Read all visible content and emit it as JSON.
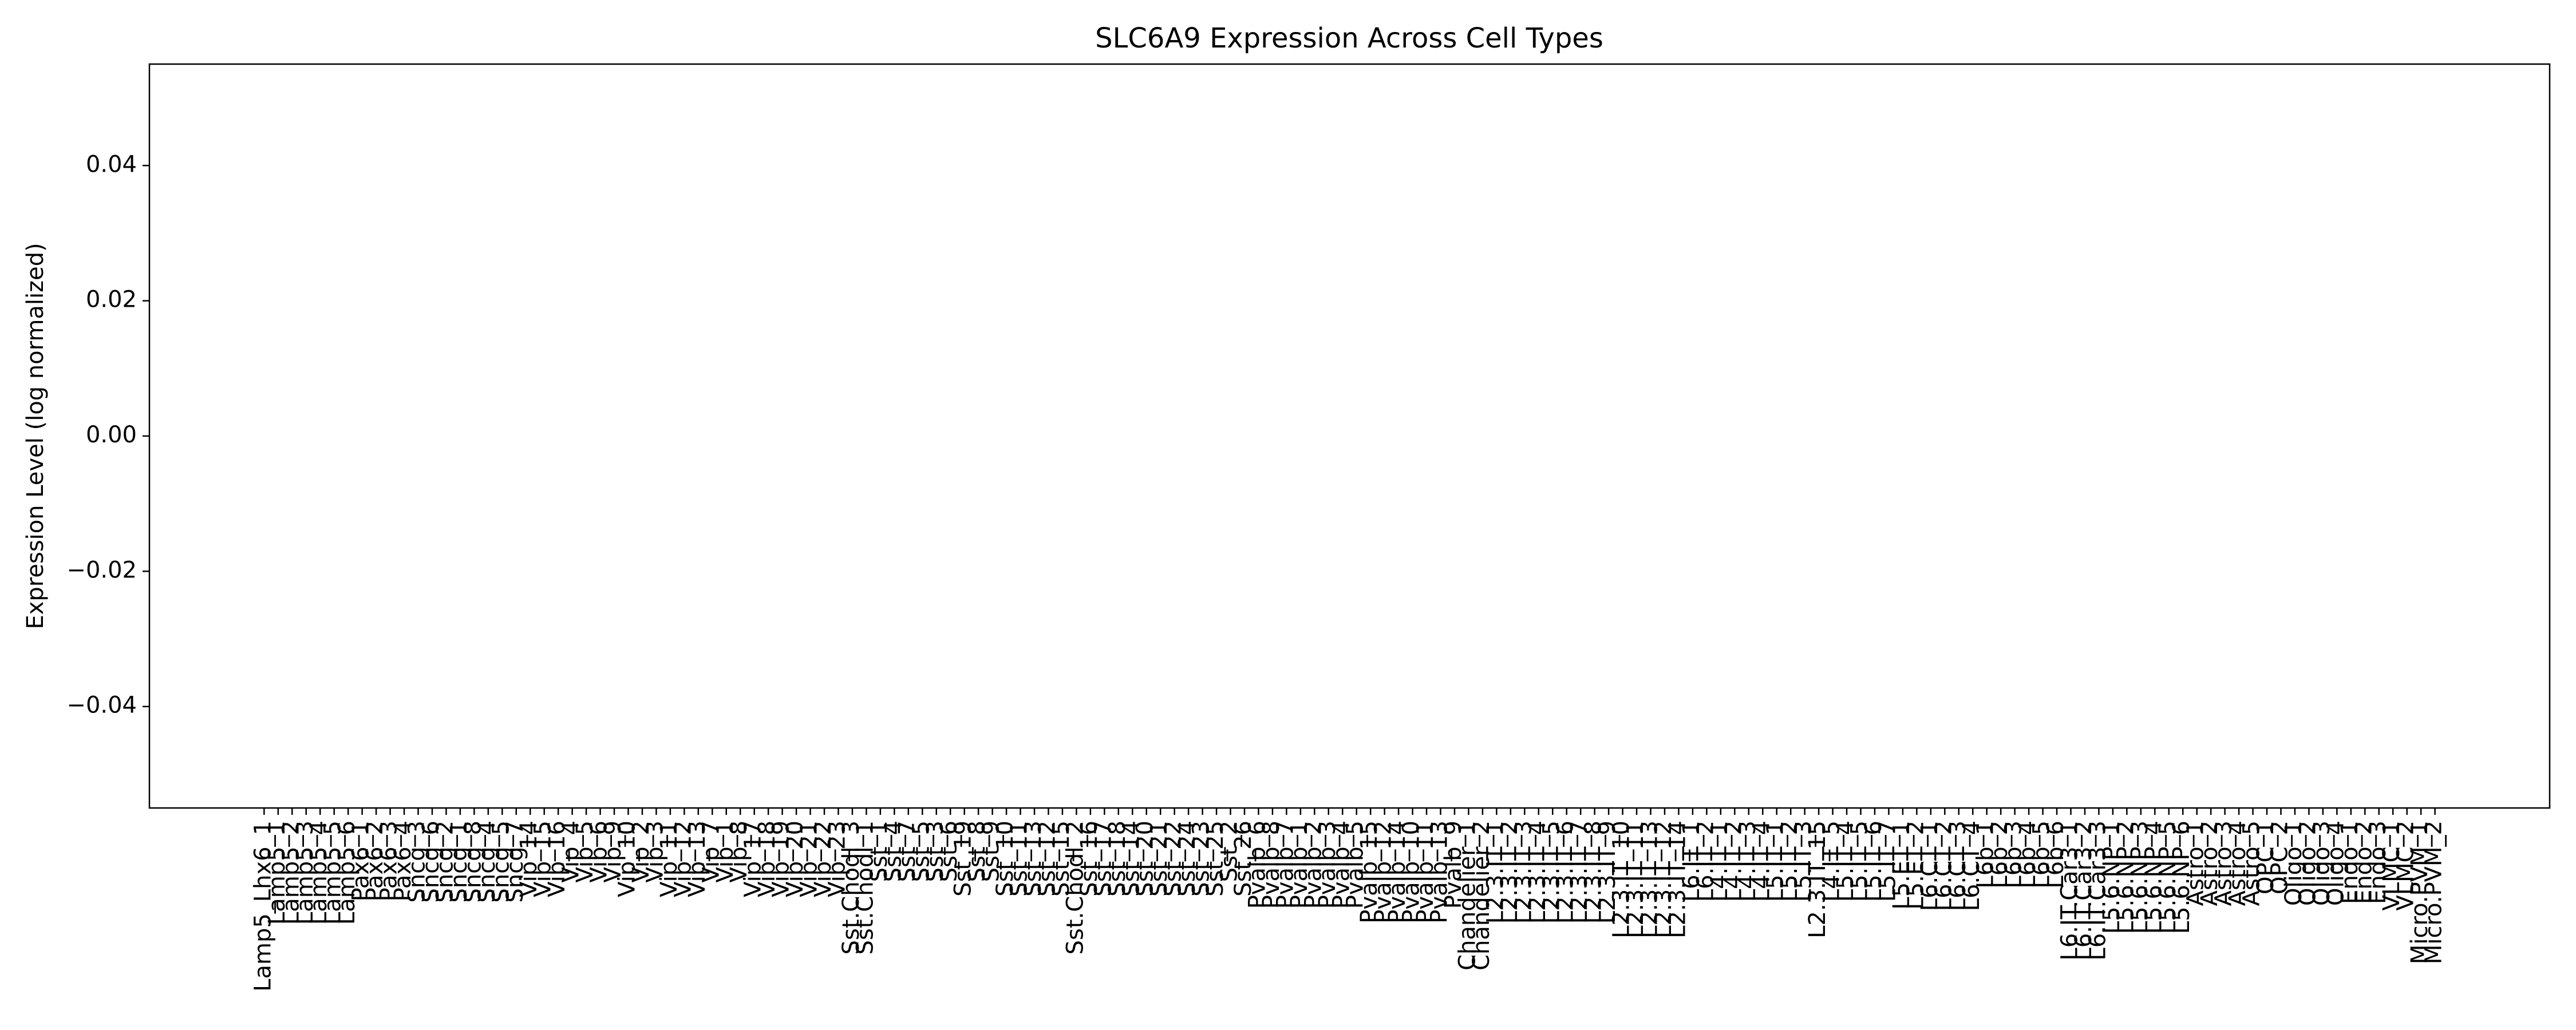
{
  "chart_data": {
    "type": "bar",
    "title": "SLC6A9 Expression Across Cell Types",
    "y_label": "Expression Level (log normalized)",
    "color": "#1f77b4",
    "categories": [
      "Lamp5_Lhx6_1",
      "Lamp5_1",
      "Lamp5_2",
      "Lamp5_3",
      "Lamp5_4",
      "Lamp5_5",
      "Lamp5_6",
      "Pax6_1",
      "Pax6_2",
      "Pax6_3",
      "Pax6_4",
      "Sncg_3",
      "Sncg_6",
      "Sncg_2",
      "Sncg_1",
      "Sncg_8",
      "Sncg_4",
      "Sncg_5",
      "Sncg_7",
      "Vip_14",
      "Vip_15",
      "Vip_16",
      "Vip_4",
      "Vip_5",
      "Vip_6",
      "Vip_9",
      "Vip_10",
      "Vip_2",
      "Vip_3",
      "Vip_11",
      "Vip_12",
      "Vip_13",
      "Vip_7",
      "Vip_1",
      "Vip_8",
      "Vip_17",
      "Vip_18",
      "Vip_19",
      "Vip_20",
      "Vip_21",
      "Vip_22",
      "Vip_23",
      "Sst.Chodl_3",
      "Sst.Chodl_1",
      "Sst_1",
      "Sst_4",
      "Sst_7",
      "Sst_5",
      "Sst_3",
      "Sst_6",
      "Sst_19",
      "Sst_8",
      "Sst_9",
      "Sst_10",
      "Sst_11",
      "Sst_13",
      "Sst_12",
      "Sst_15",
      "Sst.Chodl_2",
      "Sst_16",
      "Sst_17",
      "Sst_18",
      "Sst_14",
      "Sst_20",
      "Sst_21",
      "Sst_22",
      "Sst_24",
      "Sst_23",
      "Sst_25",
      "Sst_2",
      "Sst_26",
      "Pvalb_6",
      "Pvalb_8",
      "Pvalb_7",
      "Pvalb_1",
      "Pvalb_2",
      "Pvalb_3",
      "Pvalb_4",
      "Pvalb_5",
      "Pvalb_15",
      "Pvalb_12",
      "Pvalb_14",
      "Pvalb_10",
      "Pvalb_11",
      "Pvalb_13",
      "Pvalb_9",
      "Chandelier_1",
      "Chandelier_2",
      "L2.3.IT_1",
      "L2.3.IT_2",
      "L2.3.IT_3",
      "L2.3.IT_4",
      "L2.3.IT_5",
      "L2.3.IT_6",
      "L2.3.IT_7",
      "L2.3.IT_8",
      "L2.3.IT_9",
      "L2.3.IT_10",
      "L2.3.IT_11",
      "L2.3.IT_13",
      "L2.3.IT_12",
      "L2.3.IT_14",
      "L6.IT_1",
      "L6.IT_2",
      "L4.IT_1",
      "L4.IT_2",
      "L4.IT_3",
      "L4.IT_4",
      "L5.IT_1",
      "L5.IT_2",
      "L5.IT_3",
      "L2.3.IT_15",
      "L4.IT_5",
      "L5.IT_4",
      "L5.IT_5",
      "L5.IT_6",
      "L5.IT_7",
      "L5.ET_1",
      "L5.ET_2",
      "L6.CT_1",
      "L6.CT_2",
      "L6.CT_3",
      "L6.CT_4",
      "L6b_1",
      "L6b_2",
      "L6b_3",
      "L6b_4",
      "L6b_5",
      "L6b_6",
      "L6.IT.Car3_1",
      "L6.IT.Car3_2",
      "L6.IT.Car3_3",
      "L5.6.NP_1",
      "L5.6.NP_2",
      "L5.6.NP_3",
      "L5.6.NP_4",
      "L5.6.NP_5",
      "L5.6.NP_6",
      "Astro_1",
      "Astro_2",
      "Astro_3",
      "Astro_4",
      "Astro_5",
      "OPC_1",
      "OPC_2",
      "Oligo_1",
      "Oligo_2",
      "Oligo_3",
      "Oligo_4",
      "Endo_1",
      "Endo_2",
      "Endo_3",
      "VLMC_1",
      "VLMC_2",
      "Micro.PVM_1",
      "Micro.PVM_2"
    ],
    "values": [
      0,
      0,
      0,
      0,
      0,
      0,
      0,
      0,
      0,
      0,
      0,
      0,
      0,
      0,
      0,
      0,
      0,
      0,
      0,
      0,
      0,
      0,
      0,
      0,
      0,
      0,
      0,
      0,
      0,
      0,
      0,
      0,
      0,
      0,
      0,
      0,
      0,
      0,
      0,
      0,
      0,
      0,
      0,
      0,
      0,
      0,
      0,
      0,
      0,
      0,
      0,
      0,
      0,
      0,
      0,
      0,
      0,
      0,
      0,
      0,
      0,
      0,
      0,
      0,
      0,
      0,
      0,
      0,
      0,
      0,
      0,
      0,
      0,
      0,
      0,
      0,
      0,
      0,
      0,
      0,
      0,
      0,
      0,
      0,
      0,
      0,
      0,
      0,
      0,
      0,
      0,
      0,
      0,
      0,
      0,
      0,
      0,
      0,
      0,
      0,
      0,
      0,
      0,
      0,
      0,
      0,
      0,
      0,
      0,
      0,
      0,
      0,
      0,
      0,
      0,
      0,
      0,
      0,
      0,
      0,
      0,
      0,
      0,
      0,
      0,
      0,
      0,
      0,
      0,
      0,
      0,
      0,
      0,
      0,
      0,
      0,
      0,
      0,
      0,
      0,
      0,
      0,
      0,
      0,
      0,
      0,
      0,
      0,
      0,
      0,
      0,
      0,
      0,
      0,
      0,
      0
    ],
    "ylim": [
      -0.055,
      0.055
    ],
    "yticks": [
      {
        "value": -0.04,
        "label": "−0.04"
      },
      {
        "value": -0.02,
        "label": "−0.02"
      },
      {
        "value": 0,
        "label": "0.00"
      },
      {
        "value": 0.02,
        "label": "0.02"
      },
      {
        "value": 0.04,
        "label": "0.04"
      }
    ],
    "grid": false
  }
}
